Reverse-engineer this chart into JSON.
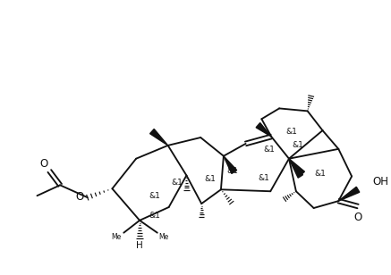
{
  "bg": "#ffffff",
  "lw": 1.35,
  "lw_thick": 2.2,
  "figsize": [
    4.37,
    3.08
  ],
  "dpi": 100,
  "stereo_labels": [
    "&1",
    "&1",
    "&1",
    "&1",
    "&1",
    "&1",
    "&1",
    "&1",
    "&1",
    "&1",
    "&1"
  ],
  "label_fontsize": 6.5,
  "group_fontsize": 8.5
}
